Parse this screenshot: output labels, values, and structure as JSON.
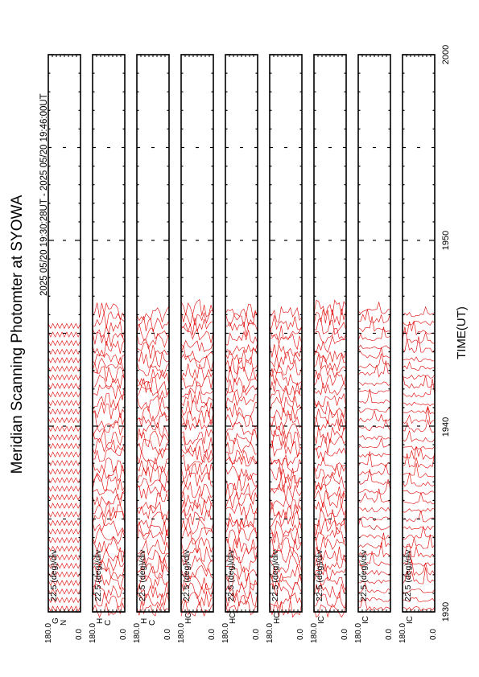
{
  "title": "Meridian Scanning Photomter at SYOWA",
  "time_range": "2025 05/20 19:30:28UT - 2025 05/20 19:46:00UT",
  "xlabel": "TIME(UT)",
  "x_ticks": [
    "1930",
    "1940",
    "1950",
    "2000"
  ],
  "scale_label": "22.5 (deg)/div",
  "y_tick_top": "180.0",
  "y_tick_bottom": "0.0",
  "colors": {
    "trace": "#e00000",
    "frame": "#000000",
    "background": "#ffffff"
  },
  "chart_data": {
    "type": "line",
    "title": "Meridian Scanning Photomter at SYOWA",
    "xlabel": "TIME(UT)",
    "xlim": [
      "19:30",
      "20:00"
    ],
    "ylim": [
      0.0,
      180.0
    ],
    "data_end_time": "19:46",
    "traces_per_panel": 34,
    "panels": [
      {
        "label": "G",
        "sublabel": "N",
        "style": "regular"
      },
      {
        "label": "H",
        "sublabel": "C",
        "style": "noisy"
      },
      {
        "label": "H",
        "sublabel": "C",
        "style": "noisy"
      },
      {
        "label": "HC",
        "sublabel": "",
        "style": "noisy"
      },
      {
        "label": "HC",
        "sublabel": "",
        "style": "noisy"
      },
      {
        "label": "HC",
        "sublabel": "",
        "style": "noisy"
      },
      {
        "label": "IC",
        "sublabel": "",
        "style": "noisy"
      },
      {
        "label": "IC",
        "sublabel": "",
        "style": "spiky"
      },
      {
        "label": "IC",
        "sublabel": "",
        "style": "spiky"
      }
    ]
  }
}
